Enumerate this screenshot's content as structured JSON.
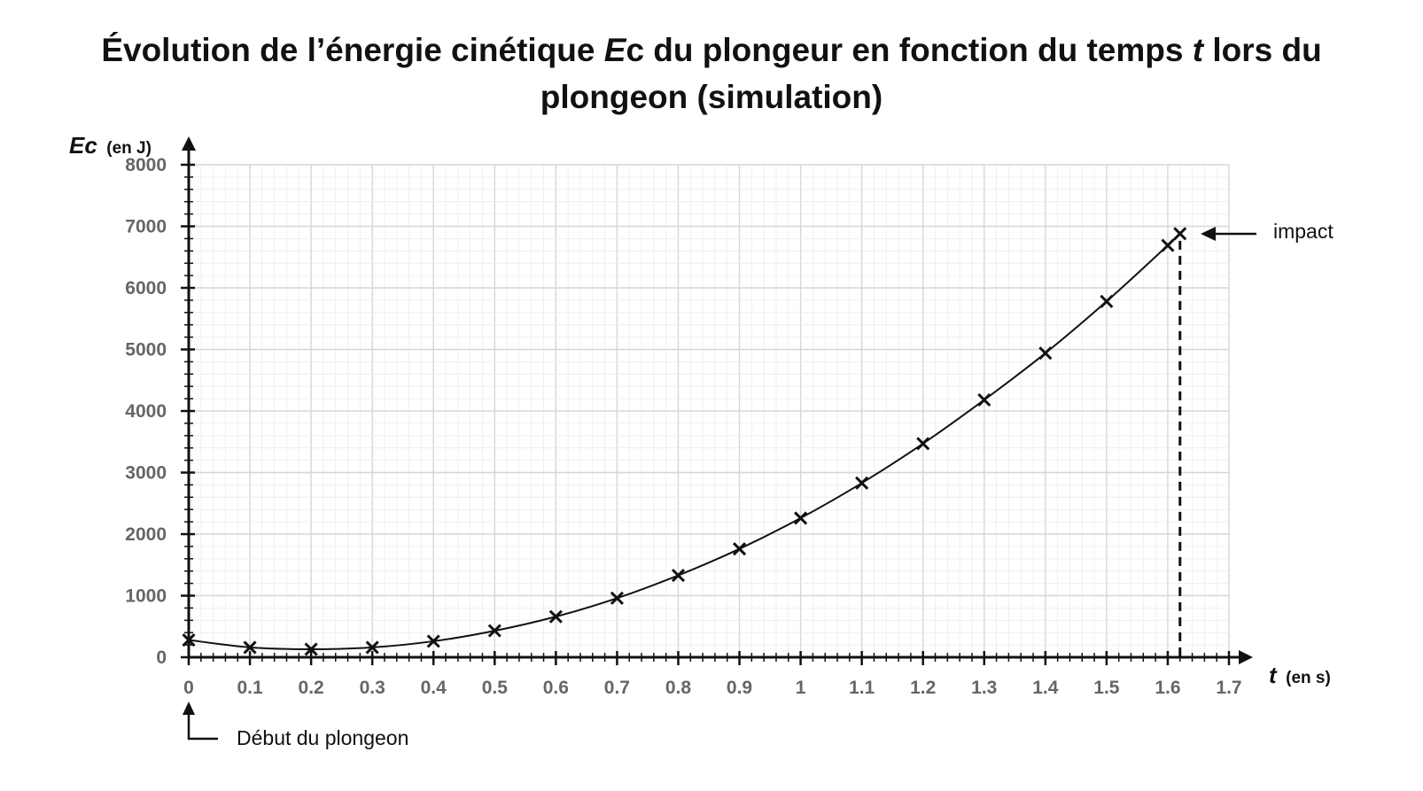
{
  "chart_data": {
    "type": "scatter",
    "title": {
      "part1": "Évolution de l’énergie cinétique ",
      "var1": "E",
      "part2": "c du plongeur en fonction du temps ",
      "var2": "t",
      "part3": " lors du plongeon (simulation)"
    },
    "ylabel": {
      "symbol": "Ec",
      "unit": "(en J)"
    },
    "xlabel": {
      "symbol": "t",
      "unit": "(en s)"
    },
    "xlim": [
      0,
      1.7
    ],
    "ylim": [
      0,
      8000
    ],
    "x_ticks": [
      "0",
      "0.1",
      "0.2",
      "0.3",
      "0.4",
      "0.5",
      "0.6",
      "0.7",
      "0.8",
      "0.9",
      "1",
      "1.1",
      "1.2",
      "1.3",
      "1.4",
      "1.5",
      "1.6",
      "1.7"
    ],
    "y_ticks": [
      "0",
      "1000",
      "2000",
      "3000",
      "4000",
      "5000",
      "6000",
      "7000",
      "8000"
    ],
    "grid": true,
    "series": [
      {
        "marker": "x",
        "x": [
          0,
          0.1,
          0.2,
          0.3,
          0.4,
          0.5,
          0.6,
          0.7,
          0.8,
          0.9,
          1.0,
          1.1,
          1.2,
          1.3,
          1.4,
          1.5,
          1.6,
          1.62
        ],
        "y": [
          280,
          160,
          130,
          160,
          260,
          430,
          660,
          960,
          1330,
          1760,
          2260,
          2830,
          3470,
          4180,
          4940,
          5780,
          6690,
          6880
        ]
      }
    ],
    "annotations": {
      "impact": {
        "label": "impact",
        "x": 1.62,
        "y": 6880
      },
      "start": {
        "label": "Début du plongeon",
        "x": 0
      }
    }
  }
}
